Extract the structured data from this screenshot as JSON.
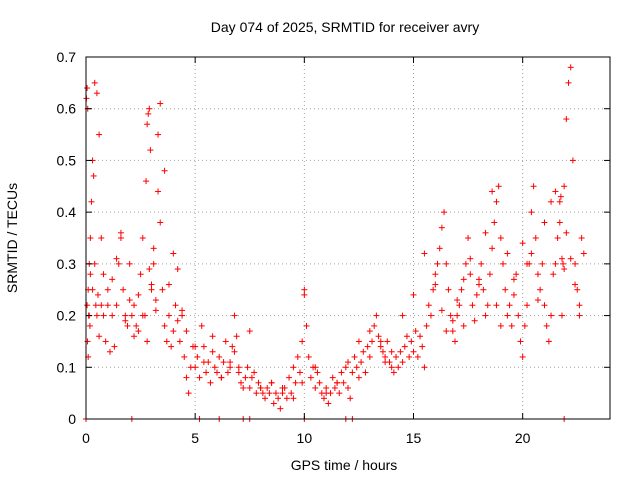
{
  "chart_data": {
    "type": "scatter",
    "title": "Day 074 of 2025, SRMTID for receiver avry",
    "xlabel": "GPS time / hours",
    "ylabel": "SRMTID / TECUs",
    "xlim": [
      0,
      24
    ],
    "ylim": [
      0,
      0.7
    ],
    "xticks": [
      0,
      5,
      10,
      15,
      20
    ],
    "xtick_labels": [
      "0",
      "5",
      "10",
      "15",
      "20"
    ],
    "yticks": [
      0,
      0.1,
      0.2,
      0.3,
      0.4,
      0.5,
      0.6,
      0.7
    ],
    "ytick_labels": [
      "0",
      "0.1",
      "0.2",
      "0.3",
      "0.4",
      "0.5",
      "0.6",
      "0.7"
    ],
    "grid": true,
    "marker": "+",
    "color": "#ff0000",
    "series": [
      {
        "name": "SRMTID",
        "x": [
          0.02,
          0.05,
          0.08,
          0.1,
          0.12,
          0.15,
          0.18,
          0.2,
          0.25,
          0.3,
          0.35,
          0.4,
          0.45,
          0.5,
          0.55,
          0.6,
          0.7,
          0.8,
          0.9,
          1.0,
          1.1,
          1.2,
          1.3,
          1.4,
          1.5,
          1.6,
          1.7,
          1.8,
          1.9,
          2.0,
          2.1,
          2.2,
          2.3,
          2.4,
          2.5,
          2.6,
          2.7,
          2.75,
          2.8,
          2.85,
          2.9,
          2.95,
          3.0,
          3.1,
          3.2,
          3.3,
          3.4,
          3.5,
          3.6,
          3.7,
          3.8,
          3.9,
          4.0,
          4.1,
          4.2,
          4.3,
          4.4,
          4.5,
          4.6,
          4.7,
          4.8,
          4.9,
          5.0,
          5.1,
          5.2,
          5.3,
          5.4,
          5.5,
          5.6,
          5.7,
          5.8,
          5.9,
          6.0,
          6.1,
          6.2,
          6.3,
          6.4,
          6.5,
          6.6,
          6.7,
          6.8,
          6.9,
          7.0,
          7.1,
          7.2,
          7.3,
          7.4,
          7.5,
          7.6,
          7.7,
          7.8,
          7.9,
          8.0,
          8.1,
          8.2,
          8.3,
          8.4,
          8.5,
          8.6,
          8.7,
          8.8,
          8.9,
          9.0,
          9.1,
          9.2,
          9.3,
          9.4,
          9.5,
          9.6,
          9.7,
          9.8,
          9.9,
          10.0,
          10.1,
          10.2,
          10.3,
          10.4,
          10.5,
          10.6,
          10.7,
          10.8,
          10.9,
          11.0,
          11.1,
          11.2,
          11.3,
          11.4,
          11.5,
          11.6,
          11.7,
          11.8,
          11.9,
          12.0,
          12.1,
          12.2,
          12.3,
          12.4,
          12.5,
          12.6,
          12.7,
          12.8,
          12.9,
          13.0,
          13.1,
          13.2,
          13.3,
          13.4,
          13.5,
          13.6,
          13.7,
          13.8,
          13.9,
          14.0,
          14.1,
          14.2,
          14.3,
          14.4,
          14.5,
          14.6,
          14.7,
          14.8,
          14.9,
          15.0,
          15.1,
          15.2,
          15.3,
          15.4,
          15.5,
          15.6,
          15.7,
          15.8,
          15.9,
          16.0,
          16.1,
          16.2,
          16.3,
          16.4,
          16.5,
          16.6,
          16.7,
          16.8,
          16.9,
          17.0,
          17.1,
          17.2,
          17.3,
          17.4,
          17.5,
          17.6,
          17.7,
          17.8,
          17.9,
          18.0,
          18.1,
          18.2,
          18.3,
          18.4,
          18.5,
          18.6,
          18.7,
          18.8,
          18.9,
          19.0,
          19.1,
          19.2,
          19.3,
          19.4,
          19.5,
          19.6,
          19.7,
          19.8,
          19.9,
          20.0,
          20.1,
          20.2,
          20.3,
          20.4,
          20.5,
          20.6,
          20.7,
          20.8,
          20.9,
          21.0,
          21.1,
          21.2,
          21.3,
          21.4,
          21.5,
          21.6,
          21.7,
          21.75,
          21.8,
          21.85,
          21.9,
          22.0,
          22.1,
          22.2,
          22.3,
          22.4,
          22.5,
          22.6,
          22.7,
          22.8,
          0.05,
          0.07,
          0.1,
          0.15,
          0.2,
          0.3,
          0.4,
          0.5,
          0.6,
          0.7,
          0.8,
          1.0,
          1.2,
          1.4,
          1.6,
          1.8,
          2.0,
          2.2,
          2.4,
          2.6,
          2.8,
          2.9,
          3.0,
          3.1,
          3.2,
          3.3,
          3.4,
          3.6,
          3.8,
          4.0,
          4.2,
          4.4,
          4.6,
          5.0,
          5.4,
          5.8,
          6.2,
          6.6,
          6.8,
          7.0,
          7.5,
          8.0,
          8.5,
          9.0,
          9.5,
          9.9,
          10.0,
          10.5,
          11.0,
          11.5,
          12.0,
          12.5,
          13.0,
          13.5,
          13.7,
          14.0,
          14.5,
          15.0,
          15.5,
          16.0,
          16.3,
          16.5,
          16.8,
          17.0,
          17.3,
          17.6,
          18.0,
          18.3,
          18.6,
          18.8,
          19.0,
          19.3,
          19.6,
          20.0,
          20.2,
          20.4,
          20.7,
          21.0,
          21.3,
          21.5,
          21.7,
          21.8,
          21.9,
          22.0,
          22.2,
          22.4,
          22.6,
          0.0,
          2.1,
          5.2,
          6.1,
          7.2,
          7.5,
          10.0,
          11.9,
          12.2,
          21.9
        ],
        "y": [
          0.62,
          0.64,
          0.6,
          0.25,
          0.2,
          0.3,
          0.18,
          0.35,
          0.42,
          0.5,
          0.47,
          0.3,
          0.22,
          0.2,
          0.24,
          0.16,
          0.22,
          0.2,
          0.15,
          0.25,
          0.13,
          0.2,
          0.14,
          0.22,
          0.3,
          0.35,
          0.25,
          0.2,
          0.18,
          0.3,
          0.2,
          0.22,
          0.18,
          0.17,
          0.28,
          0.35,
          0.2,
          0.46,
          0.57,
          0.59,
          0.6,
          0.52,
          0.25,
          0.3,
          0.23,
          0.44,
          0.38,
          0.25,
          0.18,
          0.15,
          0.2,
          0.14,
          0.17,
          0.22,
          0.19,
          0.15,
          0.2,
          0.12,
          0.08,
          0.05,
          0.1,
          0.14,
          0.1,
          0.12,
          0.08,
          0.18,
          0.14,
          0.09,
          0.11,
          0.07,
          0.13,
          0.1,
          0.09,
          0.12,
          0.08,
          0.11,
          0.15,
          0.09,
          0.1,
          0.14,
          0.2,
          0.16,
          0.09,
          0.07,
          0.06,
          0.08,
          0.1,
          0.06,
          0.08,
          0.09,
          0.05,
          0.07,
          0.06,
          0.05,
          0.04,
          0.06,
          0.05,
          0.07,
          0.03,
          0.05,
          0.04,
          0.02,
          0.05,
          0.06,
          0.04,
          0.08,
          0.05,
          0.1,
          0.07,
          0.12,
          0.09,
          0.15,
          0.24,
          0.18,
          0.12,
          0.08,
          0.1,
          0.06,
          0.09,
          0.07,
          0.05,
          0.04,
          0.06,
          0.03,
          0.05,
          0.08,
          0.06,
          0.07,
          0.05,
          0.09,
          0.07,
          0.1,
          0.06,
          0.04,
          0.09,
          0.12,
          0.1,
          0.08,
          0.11,
          0.13,
          0.09,
          0.14,
          0.12,
          0.15,
          0.18,
          0.2,
          0.16,
          0.14,
          0.13,
          0.12,
          0.15,
          0.11,
          0.1,
          0.09,
          0.12,
          0.1,
          0.13,
          0.11,
          0.14,
          0.16,
          0.12,
          0.15,
          0.13,
          0.17,
          0.12,
          0.16,
          0.14,
          0.1,
          0.18,
          0.22,
          0.2,
          0.25,
          0.28,
          0.3,
          0.33,
          0.37,
          0.4,
          0.3,
          0.25,
          0.2,
          0.17,
          0.15,
          0.2,
          0.22,
          0.25,
          0.18,
          0.3,
          0.35,
          0.28,
          0.22,
          0.19,
          0.24,
          0.27,
          0.3,
          0.25,
          0.2,
          0.22,
          0.28,
          0.33,
          0.38,
          0.42,
          0.45,
          0.35,
          0.3,
          0.25,
          0.2,
          0.22,
          0.18,
          0.24,
          0.28,
          0.2,
          0.15,
          0.12,
          0.18,
          0.22,
          0.3,
          0.4,
          0.45,
          0.35,
          0.28,
          0.25,
          0.3,
          0.22,
          0.18,
          0.15,
          0.2,
          0.28,
          0.3,
          0.35,
          0.38,
          0.43,
          0.2,
          0.3,
          0.45,
          0.58,
          0.65,
          0.68,
          0.5,
          0.3,
          0.25,
          0.2,
          0.35,
          0.32,
          0.22,
          0.15,
          0.12,
          0.2,
          0.28,
          0.25,
          0.65,
          0.63,
          0.55,
          0.35,
          0.28,
          0.22,
          0.27,
          0.31,
          0.36,
          0.19,
          0.23,
          0.16,
          0.24,
          0.2,
          0.15,
          0.29,
          0.26,
          0.33,
          0.21,
          0.55,
          0.61,
          0.48,
          0.26,
          0.32,
          0.29,
          0.21,
          0.17,
          0.14,
          0.11,
          0.16,
          0.08,
          0.11,
          0.13,
          0.1,
          0.17,
          0.06,
          0.07,
          0.06,
          0.04,
          0.07,
          0.25,
          0.1,
          0.05,
          0.07,
          0.11,
          0.15,
          0.17,
          0.15,
          0.11,
          0.13,
          0.2,
          0.24,
          0.32,
          0.26,
          0.21,
          0.17,
          0.19,
          0.23,
          0.27,
          0.31,
          0.26,
          0.36,
          0.44,
          0.22,
          0.18,
          0.32,
          0.27,
          0.34,
          0.3,
          0.32,
          0.23,
          0.38,
          0.42,
          0.44,
          0.42,
          0.31,
          0.29,
          0.36,
          0.31,
          0.26,
          0.22,
          0.0,
          0.0,
          0.0,
          0.0,
          0.0,
          0.0,
          0.0,
          0.0,
          0.0,
          0.0
        ]
      }
    ]
  }
}
